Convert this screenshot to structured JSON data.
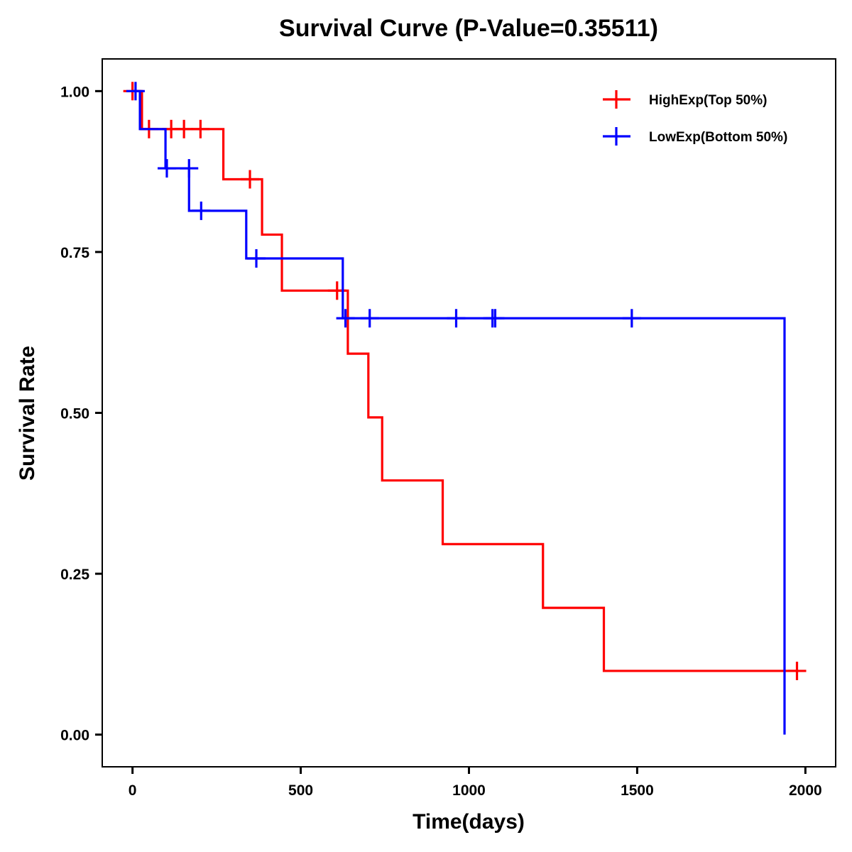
{
  "chart_data": {
    "type": "line",
    "subtype": "kaplan-meier-step",
    "title": "Survival Curve (P-Value=0.35511)",
    "xlabel": "Time(days)",
    "ylabel": "Survival Rate",
    "xlim": [
      -90,
      2090
    ],
    "ylim": [
      -0.05,
      1.05
    ],
    "xticks": [
      0,
      500,
      1000,
      1500,
      2000
    ],
    "xtick_labels": [
      "0",
      "500",
      "1000",
      "1500",
      "2000"
    ],
    "yticks": [
      0,
      0.25,
      0.5,
      0.75,
      1.0
    ],
    "ytick_labels": [
      "0.00",
      "0.25",
      "0.50",
      "0.75",
      "1.00"
    ],
    "grid": false,
    "legend_position": "top-right",
    "series": [
      {
        "name": "HighExp(Top 50%)",
        "color": "#ff0000",
        "steps": [
          {
            "time": 0,
            "survival": 1.0
          },
          {
            "time": 28,
            "survival": 0.941
          },
          {
            "time": 270,
            "survival": 0.863
          },
          {
            "time": 385,
            "survival": 0.777
          },
          {
            "time": 444,
            "survival": 0.69
          },
          {
            "time": 640,
            "survival": 0.592
          },
          {
            "time": 701,
            "survival": 0.493
          },
          {
            "time": 742,
            "survival": 0.395
          },
          {
            "time": 922,
            "survival": 0.296
          },
          {
            "time": 1220,
            "survival": 0.197
          },
          {
            "time": 1401,
            "survival": 0.099
          }
        ],
        "end_time": 1975,
        "censored": [
          {
            "time": 0,
            "survival": 1.0
          },
          {
            "time": 49,
            "survival": 0.941
          },
          {
            "time": 115,
            "survival": 0.941
          },
          {
            "time": 153,
            "survival": 0.941
          },
          {
            "time": 202,
            "survival": 0.941
          },
          {
            "time": 349,
            "survival": 0.863
          },
          {
            "time": 608,
            "survival": 0.69
          },
          {
            "time": 1975,
            "survival": 0.099
          }
        ]
      },
      {
        "name": "LowExp(Bottom 50%)",
        "color": "#0000ff",
        "steps": [
          {
            "time": 0,
            "survival": 1.0
          },
          {
            "time": 22,
            "survival": 0.941
          },
          {
            "time": 98,
            "survival": 0.88
          },
          {
            "time": 168,
            "survival": 0.814
          },
          {
            "time": 338,
            "survival": 0.74
          },
          {
            "time": 625,
            "survival": 0.647
          },
          {
            "time": 1938,
            "survival": 0.0
          }
        ],
        "end_time": 1938,
        "censored": [
          {
            "time": 9,
            "survival": 1.0
          },
          {
            "time": 102,
            "survival": 0.88
          },
          {
            "time": 168,
            "survival": 0.88
          },
          {
            "time": 204,
            "survival": 0.814
          },
          {
            "time": 368,
            "survival": 0.74
          },
          {
            "time": 633,
            "survival": 0.647
          },
          {
            "time": 705,
            "survival": 0.647
          },
          {
            "time": 962,
            "survival": 0.647
          },
          {
            "time": 1070,
            "survival": 0.647
          },
          {
            "time": 1078,
            "survival": 0.647
          },
          {
            "time": 1484,
            "survival": 0.647
          }
        ]
      }
    ]
  }
}
